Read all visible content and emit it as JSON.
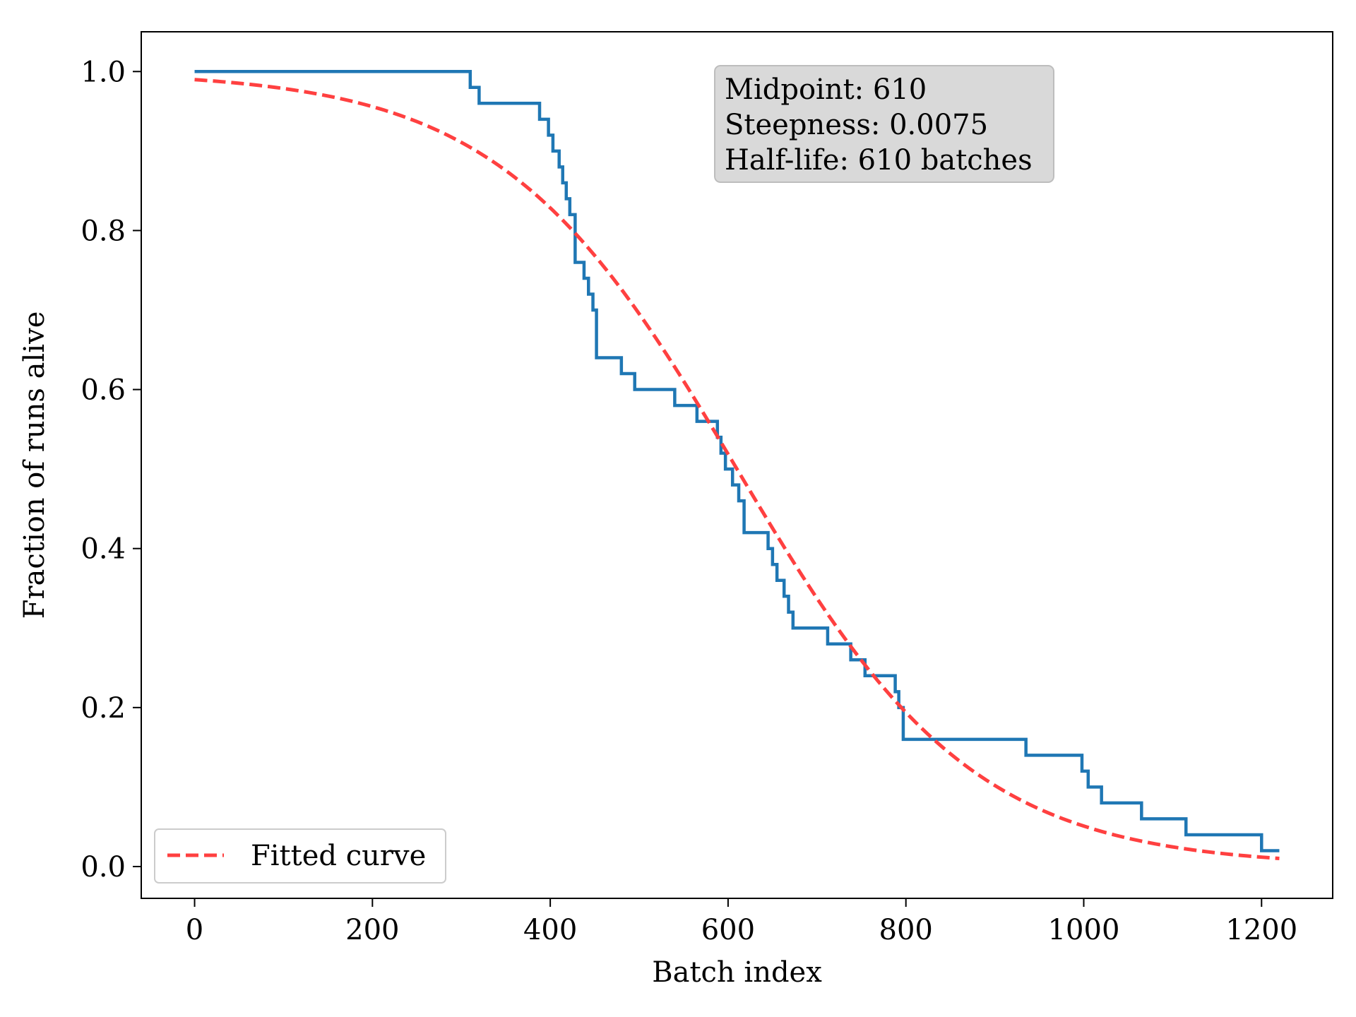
{
  "chart_data": {
    "type": "line",
    "xlabel": "Batch index",
    "ylabel": "Fraction of runs alive",
    "xlim": [
      -60,
      1280
    ],
    "ylim": [
      -0.04,
      1.05
    ],
    "xticks": [
      0,
      200,
      400,
      600,
      800,
      1000,
      1200
    ],
    "xtick_labels": [
      "0",
      "200",
      "400",
      "600",
      "800",
      "1000",
      "1200"
    ],
    "yticks": [
      0.0,
      0.2,
      0.4,
      0.6,
      0.8,
      1.0
    ],
    "ytick_labels": [
      "0.0",
      "0.2",
      "0.4",
      "0.6",
      "0.8",
      "1.0"
    ],
    "grid": false,
    "series": [
      {
        "style": "step",
        "color": "#1f77b4",
        "x": [
          0,
          310,
          320,
          388,
          398,
          403,
          410,
          414,
          418,
          422,
          428,
          438,
          443,
          448,
          452,
          480,
          495,
          540,
          565,
          588,
          592,
          597,
          605,
          612,
          618,
          645,
          650,
          655,
          663,
          668,
          673,
          712,
          738,
          754,
          758,
          788,
          792,
          797,
          935,
          998,
          1005,
          1020,
          1065,
          1115,
          1200,
          1220
        ],
        "y": [
          1.0,
          0.98,
          0.96,
          0.94,
          0.92,
          0.9,
          0.88,
          0.86,
          0.84,
          0.82,
          0.76,
          0.74,
          0.72,
          0.7,
          0.64,
          0.62,
          0.6,
          0.58,
          0.56,
          0.54,
          0.52,
          0.5,
          0.48,
          0.46,
          0.42,
          0.4,
          0.38,
          0.36,
          0.34,
          0.32,
          0.3,
          0.28,
          0.26,
          0.24,
          0.24,
          0.22,
          0.2,
          0.16,
          0.14,
          0.12,
          0.1,
          0.08,
          0.06,
          0.04,
          0.02,
          0.02
        ]
      },
      {
        "name": "Fitted curve",
        "style": "dashed",
        "color": "#ff4040",
        "model": "logistic",
        "midpoint": 610,
        "steepness": 0.0075,
        "x_range": [
          0,
          1220
        ]
      }
    ],
    "legend": {
      "position": "lower-left",
      "entries": [
        "Fitted curve"
      ]
    },
    "annotation": {
      "position": "top-center",
      "lines": [
        "Midpoint: 610",
        "Steepness: 0.0075",
        "Half-life: 610 batches"
      ]
    }
  }
}
